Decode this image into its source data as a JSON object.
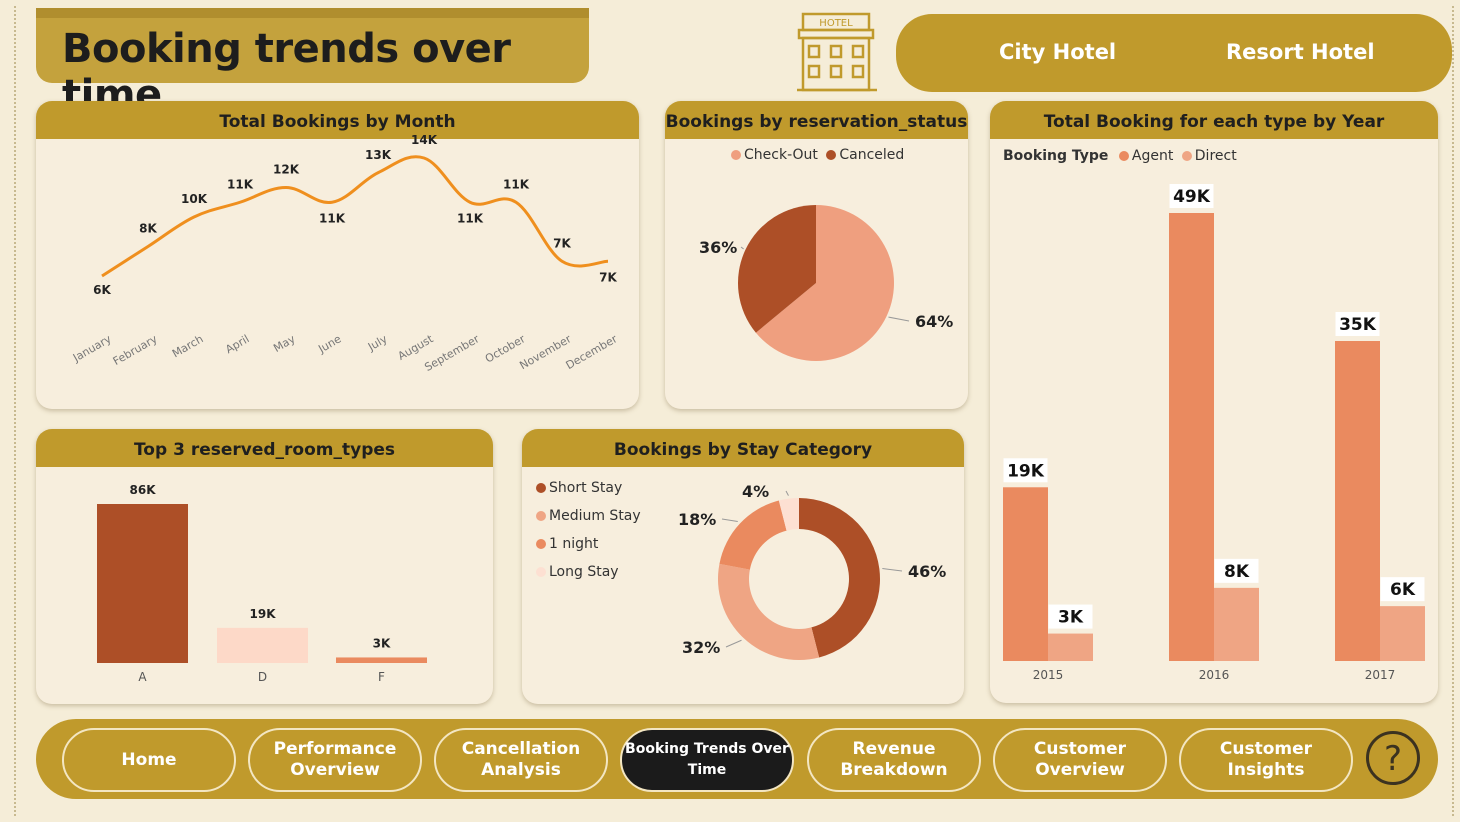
{
  "header": {
    "title": "Booking trends over time",
    "hotel_icon_label": "HOTEL",
    "hotel_tabs": [
      "City Hotel",
      "Resort Hotel"
    ]
  },
  "cards": {
    "month": {
      "title": "Total Bookings by Month"
    },
    "status": {
      "title": "Bookings by reservation_status"
    },
    "year": {
      "title": "Total Booking for each type by Year"
    },
    "rooms": {
      "title": "Top 3 reserved_room_types"
    },
    "stay": {
      "title": "Bookings by Stay Category"
    }
  },
  "colors": {
    "gold": "#c09a2c",
    "line": "#ef8f1e",
    "dark_rust": "#ad4f27",
    "salmon": "#ef9f7f",
    "orange": "#ea8a5f",
    "pale": "#fdd9c8"
  },
  "chart_data": [
    {
      "type": "line",
      "title": "Total Bookings by Month",
      "categories": [
        "January",
        "February",
        "March",
        "April",
        "May",
        "June",
        "July",
        "August",
        "September",
        "October",
        "November",
        "December"
      ],
      "values": [
        6,
        8,
        10,
        11,
        12,
        11,
        13,
        14,
        11,
        11,
        7,
        7
      ],
      "labels": [
        "6K",
        "8K",
        "10K",
        "11K",
        "12K",
        "11K",
        "13K",
        "14K",
        "11K",
        "11K",
        "7K",
        "7K"
      ]
    },
    {
      "type": "pie",
      "title": "Bookings by reservation_status",
      "legend": [
        {
          "name": "Check-Out",
          "color": "#ef9f7f"
        },
        {
          "name": "Canceled",
          "color": "#ad4f27"
        }
      ],
      "slices": [
        {
          "name": "Check-Out",
          "value": 64,
          "label": "64%",
          "color": "#ef9f7f"
        },
        {
          "name": "Canceled",
          "value": 36,
          "label": "36%",
          "color": "#ad4f27"
        }
      ]
    },
    {
      "type": "bar",
      "title": "Total Booking for each type by Year",
      "legend_title": "Booking Type",
      "categories": [
        "2015",
        "2016",
        "2017"
      ],
      "series": [
        {
          "name": "Agent",
          "color": "#ea8a5f",
          "values": [
            19,
            49,
            35
          ],
          "labels": [
            "19K",
            "49K",
            "35K"
          ]
        },
        {
          "name": "Direct",
          "color": "#efa584",
          "values": [
            3,
            8,
            6
          ],
          "labels": [
            "3K",
            "8K",
            "6K"
          ]
        }
      ]
    },
    {
      "type": "bar",
      "title": "Top 3 reserved_room_types",
      "categories": [
        "A",
        "D",
        "F"
      ],
      "values": [
        86,
        19,
        3
      ],
      "labels": [
        "86K",
        "19K",
        "3K"
      ],
      "colors": [
        "#ad4f27",
        "#fdd9c8",
        "#ea8a5f"
      ]
    },
    {
      "type": "pie",
      "title": "Bookings by Stay Category",
      "legend": [
        {
          "name": "Short Stay",
          "color": "#ad4f27"
        },
        {
          "name": "Medium Stay",
          "color": "#efa584"
        },
        {
          "name": "1 night",
          "color": "#ea8a5f"
        },
        {
          "name": "Long Stay",
          "color": "#fde0d2"
        }
      ],
      "slices": [
        {
          "name": "Short Stay",
          "value": 46,
          "label": "46%",
          "color": "#ad4f27"
        },
        {
          "name": "Medium Stay",
          "value": 32,
          "label": "32%",
          "color": "#efa584"
        },
        {
          "name": "1 night",
          "value": 18,
          "label": "18%",
          "color": "#ea8a5f"
        },
        {
          "name": "Long Stay",
          "value": 4,
          "label": "4%",
          "color": "#fde0d2"
        }
      ]
    }
  ],
  "nav": {
    "items": [
      {
        "label": "Home"
      },
      {
        "label": "Performance Overview"
      },
      {
        "label": "Cancellation Analysis"
      },
      {
        "label": "Booking Trends Over Time",
        "active": true
      },
      {
        "label": "Revenue Breakdown"
      },
      {
        "label": "Customer Overview"
      },
      {
        "label": "Customer Insights"
      }
    ],
    "help": "?"
  }
}
